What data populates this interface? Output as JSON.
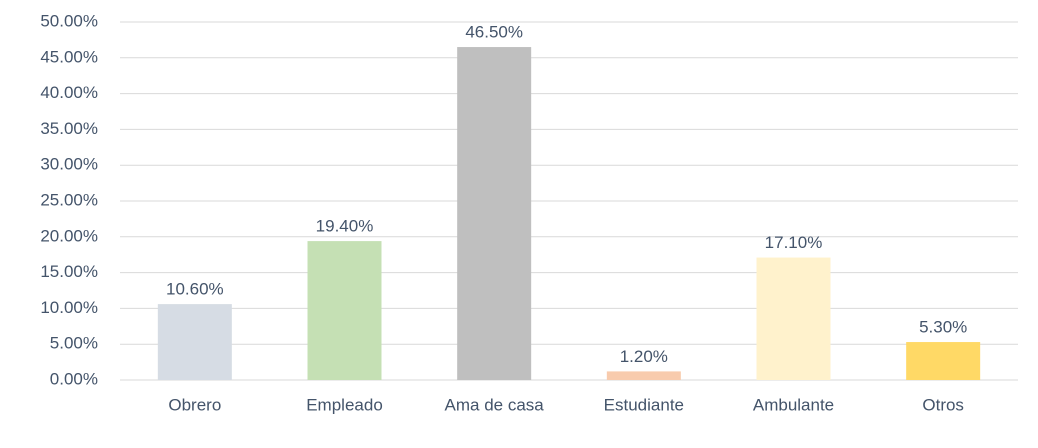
{
  "chart_data": {
    "type": "bar",
    "categories": [
      "Obrero",
      "Empleado",
      "Ama de casa",
      "Estudiante",
      "Ambulante",
      "Otros"
    ],
    "values": [
      10.6,
      19.4,
      46.5,
      1.2,
      17.1,
      5.3
    ],
    "value_labels": [
      "10.60%",
      "19.40%",
      "46.50%",
      "1.20%",
      "17.10%",
      "5.30%"
    ],
    "colors": [
      "#d6dce4",
      "#c5e0b4",
      "#bfbfbf",
      "#f8cbad",
      "#fff2cc",
      "#ffd966"
    ],
    "ylim": [
      0,
      50
    ],
    "yticks": [
      {
        "value": 0,
        "label": "0.00%"
      },
      {
        "value": 5,
        "label": "5.00%"
      },
      {
        "value": 10,
        "label": "10.00%"
      },
      {
        "value": 15,
        "label": "15.00%"
      },
      {
        "value": 20,
        "label": "20.00%"
      },
      {
        "value": 25,
        "label": "25.00%"
      },
      {
        "value": 30,
        "label": "30.00%"
      },
      {
        "value": 35,
        "label": "35.00%"
      },
      {
        "value": 40,
        "label": "40.00%"
      },
      {
        "value": 45,
        "label": "45.00%"
      },
      {
        "value": 50,
        "label": "50.00%"
      }
    ],
    "grid": true
  }
}
